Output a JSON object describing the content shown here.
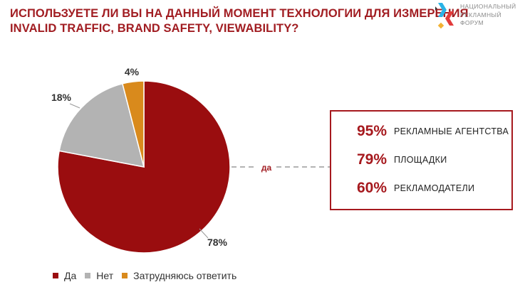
{
  "title": {
    "line1": "ИСПОЛЬЗУЕТЕ ЛИ ВЫ НА ДАННЫЙ МОМЕНТ ТЕХНОЛОГИИ ДЛЯ ИЗМЕРЕНИЯ",
    "line2": "INVALID TRAFFIC, BRAND SAFETY, VIEWABILITY?"
  },
  "logo": {
    "line1": "НАЦИОНАЛЬНЫЙ",
    "line2": "РЕКЛАМНЫЙ",
    "line3": "ФОРУМ"
  },
  "colors": {
    "accent": "#a11d22",
    "da": "#9a0d0f",
    "net": "#b3b3b3",
    "zatr": "#d98a1c",
    "logo_blue": "#2bb3e6",
    "logo_red": "#e23b3b"
  },
  "chart_data": {
    "type": "pie",
    "categories": [
      "Да",
      "Нет",
      "Затрудняюсь ответить"
    ],
    "values": [
      78,
      18,
      4
    ],
    "labels": [
      "78%",
      "18%",
      "4%"
    ],
    "legend_position": "bottom"
  },
  "breakdown": {
    "connector_label": "да",
    "items": [
      {
        "value": "95%",
        "label": "РЕКЛАМНЫЕ АГЕНТСТВА"
      },
      {
        "value": "79%",
        "label": "ПЛОЩАДКИ"
      },
      {
        "value": "60%",
        "label": "РЕКЛАМОДАТЕЛИ"
      }
    ]
  }
}
